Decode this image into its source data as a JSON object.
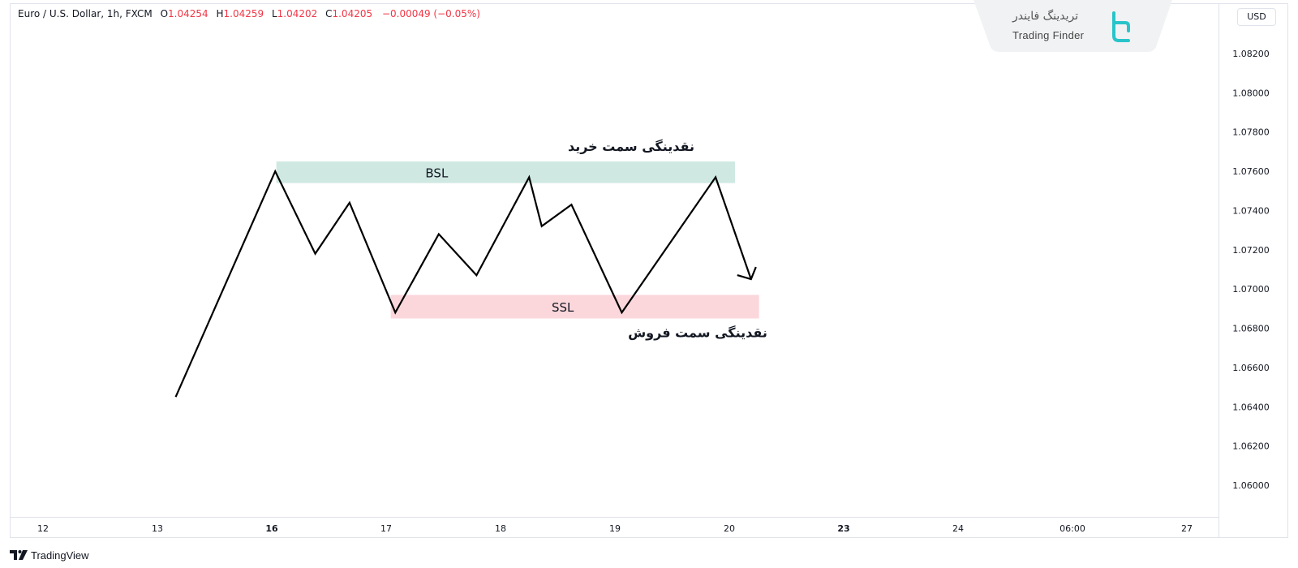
{
  "legend": {
    "symbol": "Euro / U.S. Dollar, 1h, FXCM",
    "open_key": "O",
    "open": "1.04254",
    "high_key": "H",
    "high": "1.04259",
    "low_key": "L",
    "low": "1.04202",
    "close_key": "C",
    "close": "1.04205",
    "change": "−0.00049 (−0.05%)"
  },
  "currency_button": "USD",
  "watermark": {
    "fa": "تریدینگ فایندر",
    "en": "Trading Finder"
  },
  "brand": "TradingView",
  "colors": {
    "bsl_zone": "#cfe9e2",
    "ssl_zone": "#fbd7dc",
    "line": "#000000",
    "legend_value": "#f23645"
  },
  "chart_data": {
    "type": "line",
    "ylim": [
      1.0597,
      1.0835
    ],
    "y_ticks": [
      "1.08200",
      "1.08000",
      "1.07800",
      "1.07600",
      "1.07400",
      "1.07200",
      "1.07000",
      "1.06800",
      "1.06600",
      "1.06400",
      "1.06200",
      "1.06000"
    ],
    "x_ticks": [
      {
        "label": "12",
        "bold": false
      },
      {
        "label": "13",
        "bold": false
      },
      {
        "label": "16",
        "bold": true
      },
      {
        "label": "17",
        "bold": false
      },
      {
        "label": "18",
        "bold": false
      },
      {
        "label": "19",
        "bold": false
      },
      {
        "label": "20",
        "bold": false
      },
      {
        "label": "23",
        "bold": true
      },
      {
        "label": "24",
        "bold": false
      },
      {
        "label": "06:00",
        "bold": false
      },
      {
        "label": "27",
        "bold": false
      }
    ],
    "series": [
      {
        "x": [
          1.16,
          2.03,
          2.38,
          2.68,
          3.08,
          3.46,
          3.79,
          4.25,
          4.36,
          4.62,
          5.06,
          5.88,
          6.19
        ],
        "y": [
          1.0645,
          1.076,
          1.0718,
          1.0744,
          1.0688,
          1.0728,
          1.0707,
          1.0757,
          1.0732,
          1.0743,
          1.0688,
          1.0757,
          1.0705
        ]
      }
    ],
    "zones": [
      {
        "label": "BSL",
        "caption": "نقدینگی سمت خرید",
        "x": [
          2.04,
          6.05
        ],
        "y": [
          1.0754,
          1.0765
        ]
      },
      {
        "label": "SSL",
        "caption": "نقدینگی سمت فروش",
        "x": [
          3.04,
          6.26
        ],
        "y": [
          1.0685,
          1.0697
        ]
      }
    ]
  }
}
